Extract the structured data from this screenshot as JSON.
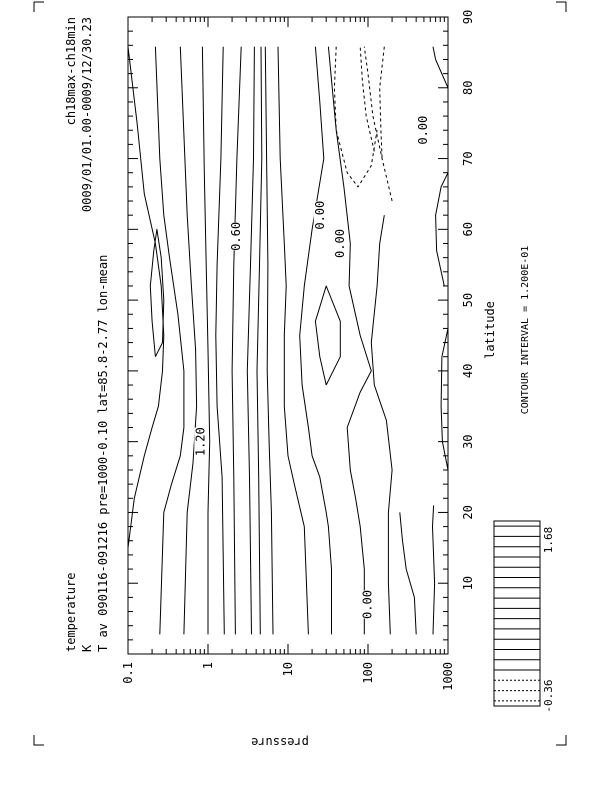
{
  "chart_data": {
    "type": "contour",
    "field": "temperature",
    "header": {
      "variable": "temperature",
      "units": "K",
      "description": "T av 090116-091216 pre=1000-0.10 lat=85.8-2.77 lon-mean",
      "experiment": "ch18max-ch18min",
      "time_range": "0009/01/01.00-0009/12/30.23"
    },
    "xlabel": "latitude",
    "ylabel": "pressure",
    "x_axis": {
      "ticks": [
        "10",
        "20",
        "30",
        "40",
        "50",
        "60",
        "70",
        "80",
        "90"
      ],
      "range": [
        0,
        90
      ]
    },
    "y_axis": {
      "ticks": [
        "0.1",
        "1",
        "10",
        "100",
        "1000"
      ],
      "range": [
        0.1,
        1000
      ],
      "scale": "log"
    },
    "contour_interval_label": "CONTOUR INTERVAL = 1.200E-01",
    "contour_labels": [
      {
        "text": "1.20",
        "lat": 30,
        "p": 0.9
      },
      {
        "text": "0.60",
        "lat": 59,
        "p": 2.5
      },
      {
        "text": "0.00",
        "lat": 62,
        "p": 28
      },
      {
        "text": "0.00",
        "lat": 58,
        "p": 50
      },
      {
        "text": "0.00",
        "lat": 74,
        "p": 550
      },
      {
        "text": "0.00",
        "lat": 7,
        "p": 110
      }
    ],
    "colorbar": {
      "min": "-0.36",
      "max": "1.68",
      "levels": 18,
      "negative_levels": 3
    },
    "contours": [
      {
        "dashed": false,
        "pts": [
          [
            2.77,
            0.05
          ],
          [
            15,
            0.08
          ],
          [
            22,
            0.12
          ],
          [
            28,
            0.16
          ],
          [
            32,
            0.2
          ],
          [
            35,
            0.24
          ],
          [
            40,
            0.27
          ],
          [
            45,
            0.28
          ],
          [
            52,
            0.26
          ],
          [
            58,
            0.22
          ],
          [
            65,
            0.16
          ],
          [
            75,
            0.13
          ],
          [
            85.8,
            0.1
          ]
        ]
      },
      {
        "dashed": false,
        "pts": [
          [
            42,
            0.22
          ],
          [
            47,
            0.2
          ],
          [
            52,
            0.19
          ],
          [
            57,
            0.21
          ],
          [
            60,
            0.23
          ],
          [
            56,
            0.26
          ],
          [
            50,
            0.28
          ],
          [
            44,
            0.27
          ],
          [
            42,
            0.22
          ]
        ]
      },
      {
        "dashed": false,
        "pts": [
          [
            2.77,
            0.25
          ],
          [
            20,
            0.28
          ],
          [
            24,
            0.35
          ],
          [
            28,
            0.45
          ],
          [
            32,
            0.5
          ],
          [
            40,
            0.5
          ],
          [
            48,
            0.42
          ],
          [
            56,
            0.33
          ],
          [
            62,
            0.28
          ],
          [
            70,
            0.25
          ],
          [
            85.8,
            0.22
          ]
        ]
      },
      {
        "dashed": false,
        "pts": [
          [
            2.77,
            0.5
          ],
          [
            20,
            0.55
          ],
          [
            27,
            0.65
          ],
          [
            35,
            0.72
          ],
          [
            43,
            0.7
          ],
          [
            52,
            0.62
          ],
          [
            62,
            0.55
          ],
          [
            85.8,
            0.45
          ]
        ]
      },
      {
        "dashed": false,
        "pts": [
          [
            2.77,
            1.0
          ],
          [
            20,
            1.0
          ],
          [
            30,
            1.05
          ],
          [
            43,
            1.0
          ],
          [
            55,
            0.95
          ],
          [
            68,
            0.9
          ],
          [
            85.8,
            0.85
          ]
        ]
      },
      {
        "dashed": false,
        "pts": [
          [
            2.77,
            1.6
          ],
          [
            25,
            1.5
          ],
          [
            35,
            1.3
          ],
          [
            45,
            1.25
          ],
          [
            55,
            1.3
          ],
          [
            70,
            1.45
          ],
          [
            85.8,
            1.55
          ]
        ]
      },
      {
        "dashed": false,
        "pts": [
          [
            2.77,
            2.2
          ],
          [
            25,
            2.1
          ],
          [
            40,
            2.0
          ],
          [
            55,
            2.1
          ],
          [
            70,
            2.3
          ],
          [
            85.8,
            2.6
          ]
        ]
      },
      {
        "dashed": false,
        "pts": [
          [
            2.77,
            3.5
          ],
          [
            25,
            3.3
          ],
          [
            40,
            3.1
          ],
          [
            55,
            3.4
          ],
          [
            70,
            3.7
          ],
          [
            85.8,
            3.8
          ]
        ]
      },
      {
        "dashed": false,
        "pts": [
          [
            2.77,
            4.5
          ],
          [
            25,
            4.3
          ],
          [
            40,
            4.1
          ],
          [
            55,
            4.4
          ],
          [
            70,
            4.7
          ],
          [
            85.8,
            4.6
          ]
        ]
      },
      {
        "dashed": false,
        "pts": [
          [
            2.77,
            6.5
          ],
          [
            20,
            6.2
          ],
          [
            30,
            5.8
          ],
          [
            40,
            5.5
          ],
          [
            55,
            5.6
          ],
          [
            70,
            5.4
          ],
          [
            85.8,
            5.2
          ]
        ]
      },
      {
        "dashed": false,
        "pts": [
          [
            2.77,
            18
          ],
          [
            18,
            16
          ],
          [
            24,
            12
          ],
          [
            28,
            10
          ],
          [
            35,
            9
          ],
          [
            45,
            9
          ],
          [
            52,
            9.5
          ],
          [
            58,
            9
          ],
          [
            70,
            8
          ],
          [
            85.8,
            7.5
          ]
        ]
      },
      {
        "dashed": false,
        "pts": [
          [
            2.77,
            35
          ],
          [
            12,
            35
          ],
          [
            18,
            32
          ],
          [
            20,
            30
          ],
          [
            25,
            25
          ],
          [
            28,
            20
          ],
          [
            32,
            18
          ],
          [
            38,
            15
          ],
          [
            45,
            14
          ],
          [
            52,
            16
          ],
          [
            60,
            20
          ],
          [
            70,
            28
          ],
          [
            78,
            25
          ],
          [
            85.8,
            22
          ]
        ]
      },
      {
        "dashed": false,
        "pts": [
          [
            38,
            30
          ],
          [
            42,
            25
          ],
          [
            47,
            22
          ],
          [
            52,
            30
          ],
          [
            47,
            45
          ],
          [
            42,
            45
          ],
          [
            38,
            30
          ]
        ]
      },
      {
        "dashed": false,
        "pts": [
          [
            2.77,
            90
          ],
          [
            12,
            90
          ],
          [
            18,
            80
          ],
          [
            22,
            70
          ],
          [
            26,
            60
          ],
          [
            32,
            55
          ],
          [
            37,
            80
          ],
          [
            40,
            110
          ],
          [
            45,
            80
          ],
          [
            52,
            58
          ],
          [
            58,
            60
          ],
          [
            66,
            50
          ],
          [
            74,
            40
          ],
          [
            85.8,
            32
          ]
        ]
      },
      {
        "dashed": false,
        "pts": [
          [
            2.77,
            190
          ],
          [
            10,
            180
          ],
          [
            20,
            180
          ],
          [
            26,
            200
          ],
          [
            33,
            170
          ],
          [
            38,
            120
          ],
          [
            44,
            110
          ],
          [
            52,
            130
          ],
          [
            58,
            140
          ],
          [
            62,
            160
          ]
        ]
      },
      {
        "dashed": false,
        "pts": [
          [
            2.77,
            400
          ],
          [
            8,
            380
          ],
          [
            12,
            300
          ],
          [
            16,
            270
          ],
          [
            20,
            250
          ]
        ]
      },
      {
        "dashed": false,
        "pts": [
          [
            2.77,
            650
          ],
          [
            10,
            680
          ],
          [
            18,
            640
          ],
          [
            21,
            660
          ]
        ]
      },
      {
        "dashed": false,
        "pts": [
          [
            26,
            1000
          ],
          [
            30,
            850
          ],
          [
            35,
            820
          ],
          [
            42,
            840
          ],
          [
            46,
            1000
          ]
        ]
      },
      {
        "dashed": false,
        "pts": [
          [
            52,
            900
          ],
          [
            57,
            720
          ],
          [
            62,
            700
          ],
          [
            66,
            820
          ],
          [
            68,
            1000
          ]
        ]
      },
      {
        "dashed": false,
        "pts": [
          [
            80,
            1000
          ],
          [
            84,
            700
          ],
          [
            85.8,
            650
          ]
        ]
      },
      {
        "dashed": true,
        "pts": [
          [
            64,
            200
          ],
          [
            70,
            150
          ],
          [
            76,
            115
          ],
          [
            82,
            100
          ],
          [
            85.8,
            90
          ]
        ]
      },
      {
        "dashed": true,
        "pts": [
          [
            71,
            120
          ],
          [
            76,
            95
          ],
          [
            81,
            85
          ],
          [
            85.8,
            80
          ]
        ]
      },
      {
        "dashed": true,
        "pts": [
          [
            85.8,
            40
          ],
          [
            80,
            38
          ],
          [
            74,
            40
          ],
          [
            68,
            55
          ],
          [
            66,
            75
          ],
          [
            69,
            110
          ],
          [
            74,
            130
          ]
        ]
      },
      {
        "dashed": true,
        "pts": [
          [
            85.8,
            160
          ],
          [
            80,
            140
          ],
          [
            74,
            145
          ],
          [
            70,
            150
          ]
        ]
      }
    ]
  }
}
